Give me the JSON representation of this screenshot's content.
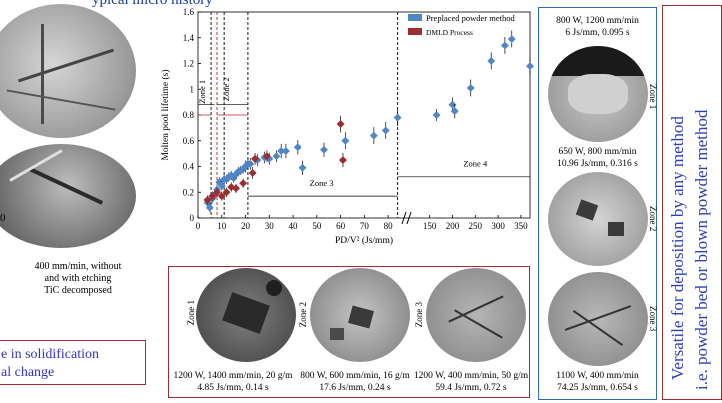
{
  "header": {
    "title_fragment": "ypical   micro   history"
  },
  "left": {
    "caption_lines": [
      "400 mm/min, without",
      "and with etching",
      "TiC decomposed"
    ],
    "edge_label": "0",
    "note_lines": [
      "e in solidification",
      "al change"
    ]
  },
  "right_panel": {
    "top_caption": [
      "800 W, 1200 mm/min",
      "6 Js/mm, 0.095 s"
    ],
    "mid_caption": [
      "650 W, 800 mm/min",
      "10.96 Js/mm, 0.316 s"
    ],
    "bottom_caption": [
      "1100 W, 400 mm/min",
      "74.25 Js/mm, 0.654 s"
    ],
    "zone_labels": [
      "Zone 1",
      "Zone 2",
      "Zone 3"
    ]
  },
  "bottom_panel": {
    "zone_labels": [
      "Zone 1",
      "Zone 2",
      "Zone 3"
    ],
    "captions": [
      [
        "1200 W, 1400 mm/min, 20 g/m",
        "4.85 Js/mm, 0.14 s"
      ],
      [
        "800 W, 600 mm/min, 16 g/m",
        "17.6 Js/mm, 0.24 s"
      ],
      [
        "1200 W, 400 mm/min, 50 g/m",
        "59.4 Js/mm, 0.72 s"
      ]
    ]
  },
  "side_text": [
    "Versatile for deposition by any method",
    "i.e. powder bed or blown powder method"
  ],
  "colors": {
    "series_blue": "#4f86c6",
    "series_red": "#9b2d30",
    "panel_blue": "#2f6db5",
    "panel_red": "#9b2d30",
    "side_text": "#2a3fb8",
    "note": "#3333cc"
  },
  "chart_data": {
    "type": "scatter",
    "ylabel": "Molten pool lifetime (s)",
    "xlabel": "PD/V² (Js/mm)",
    "ylim": [
      0,
      1.6
    ],
    "yticks": [
      0,
      0.2,
      0.4,
      0.6,
      0.8,
      1.0,
      1.2,
      1.4,
      1.6
    ],
    "ytick_labels": [
      "0",
      "0.2",
      "0.4",
      "0.6",
      "0.8",
      "1",
      "1.2",
      "1.4",
      "1.6"
    ],
    "x_segments": [
      {
        "range": [
          0,
          85
        ],
        "ticks": [
          0,
          10,
          20,
          30,
          40,
          50,
          60,
          70,
          80
        ]
      },
      {
        "range": [
          120,
          370
        ],
        "ticks": [
          150,
          200,
          250,
          300,
          350
        ]
      }
    ],
    "legend": {
      "placement": "top-right",
      "entries": [
        "Preplaced powder method",
        "DMLD Process"
      ]
    },
    "zones": [
      {
        "label": "Zone 1",
        "from": 0,
        "to": 7
      },
      {
        "label": "Zone 2",
        "from": 7,
        "to": 21
      },
      {
        "label": "Zone 3",
        "from": 21,
        "to": 84
      },
      {
        "label": "Zone 4",
        "from": 84,
        "to": 370
      }
    ],
    "zone_lines": [
      5.5,
      8,
      11,
      21,
      84
    ],
    "series": [
      {
        "name": "Preplaced powder method",
        "points": [
          {
            "x": 4,
            "y": 0.12,
            "e": 0.02
          },
          {
            "x": 5,
            "y": 0.08,
            "e": 0.02
          },
          {
            "x": 6,
            "y": 0.15,
            "e": 0.02
          },
          {
            "x": 7,
            "y": 0.18,
            "e": 0.02
          },
          {
            "x": 8,
            "y": 0.22,
            "e": 0.02
          },
          {
            "x": 9,
            "y": 0.28,
            "e": 0.02
          },
          {
            "x": 10,
            "y": 0.25,
            "e": 0.02
          },
          {
            "x": 11,
            "y": 0.3,
            "e": 0.02
          },
          {
            "x": 12,
            "y": 0.3,
            "e": 0.02
          },
          {
            "x": 13,
            "y": 0.32,
            "e": 0.02
          },
          {
            "x": 14,
            "y": 0.33,
            "e": 0.02
          },
          {
            "x": 15,
            "y": 0.31,
            "e": 0.02
          },
          {
            "x": 16,
            "y": 0.34,
            "e": 0.02
          },
          {
            "x": 17,
            "y": 0.36,
            "e": 0.02
          },
          {
            "x": 18,
            "y": 0.37,
            "e": 0.02
          },
          {
            "x": 19,
            "y": 0.38,
            "e": 0.02
          },
          {
            "x": 20,
            "y": 0.4,
            "e": 0.03
          },
          {
            "x": 21,
            "y": 0.42,
            "e": 0.03
          },
          {
            "x": 22,
            "y": 0.42,
            "e": 0.03
          },
          {
            "x": 25,
            "y": 0.45,
            "e": 0.03
          },
          {
            "x": 28,
            "y": 0.47,
            "e": 0.03
          },
          {
            "x": 30,
            "y": 0.46,
            "e": 0.03
          },
          {
            "x": 33,
            "y": 0.48,
            "e": 0.03
          },
          {
            "x": 35,
            "y": 0.52,
            "e": 0.04
          },
          {
            "x": 37,
            "y": 0.52,
            "e": 0.04
          },
          {
            "x": 42,
            "y": 0.55,
            "e": 0.04
          },
          {
            "x": 44,
            "y": 0.39,
            "e": 0.04
          },
          {
            "x": 53,
            "y": 0.53,
            "e": 0.04
          },
          {
            "x": 62,
            "y": 0.6,
            "e": 0.05
          },
          {
            "x": 74,
            "y": 0.64,
            "e": 0.05
          },
          {
            "x": 79,
            "y": 0.68,
            "e": 0.05
          },
          {
            "x": 84,
            "y": 0.78,
            "e": 0.05
          },
          {
            "x": 165,
            "y": 0.8,
            "e": 0.03
          },
          {
            "x": 200,
            "y": 0.88,
            "e": 0.04
          },
          {
            "x": 205,
            "y": 0.83,
            "e": 0.04
          },
          {
            "x": 240,
            "y": 1.01,
            "e": 0.05
          },
          {
            "x": 285,
            "y": 1.22,
            "e": 0.05
          },
          {
            "x": 315,
            "y": 1.34,
            "e": 0.05
          },
          {
            "x": 330,
            "y": 1.39,
            "e": 0.05
          },
          {
            "x": 370,
            "y": 1.18,
            "e": 0.05
          }
        ]
      },
      {
        "name": "DMLD Process",
        "points": [
          {
            "x": 4,
            "y": 0.14,
            "e": 0.02
          },
          {
            "x": 6,
            "y": 0.17,
            "e": 0.02
          },
          {
            "x": 8,
            "y": 0.2,
            "e": 0.02
          },
          {
            "x": 10,
            "y": 0.17,
            "e": 0.02
          },
          {
            "x": 12,
            "y": 0.2,
            "e": 0.02
          },
          {
            "x": 14,
            "y": 0.24,
            "e": 0.02
          },
          {
            "x": 16,
            "y": 0.23,
            "e": 0.02
          },
          {
            "x": 19,
            "y": 0.27,
            "e": 0.02
          },
          {
            "x": 23,
            "y": 0.35,
            "e": 0.03
          },
          {
            "x": 24,
            "y": 0.46,
            "e": 0.03
          },
          {
            "x": 29,
            "y": 0.48,
            "e": 0.03
          },
          {
            "x": 60,
            "y": 0.73,
            "e": 0.05
          },
          {
            "x": 61,
            "y": 0.45,
            "e": 0.04
          }
        ]
      }
    ]
  }
}
